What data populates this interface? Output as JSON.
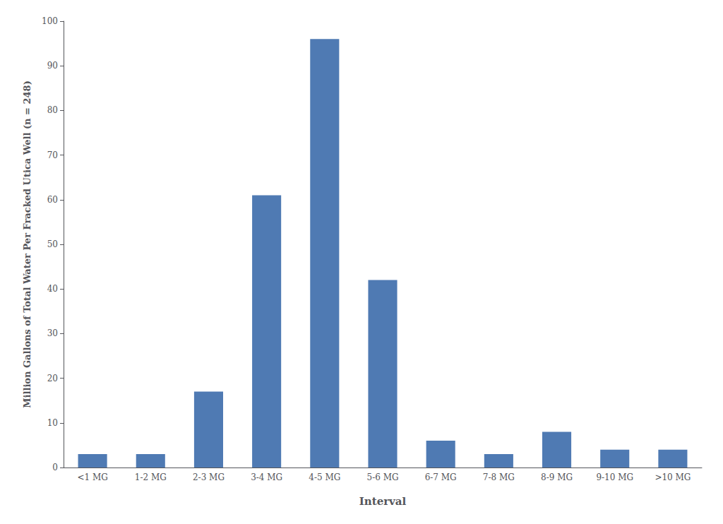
{
  "chart_data": {
    "type": "bar",
    "categories": [
      "<1 MG",
      "1-2 MG",
      "2-3 MG",
      "3-4 MG",
      "4-5 MG",
      "5-6 MG",
      "6-7 MG",
      "7-8 MG",
      "8-9 MG",
      "9-10 MG",
      ">10 MG"
    ],
    "values": [
      3,
      3,
      17,
      61,
      96,
      42,
      6,
      3,
      8,
      4,
      4
    ],
    "color": "#4f7ab3",
    "xlabel": "Interval",
    "ylabel": "Million Gallons of Total Water Per Fracked Utica Well (n = 248)",
    "ylim": [
      0,
      100
    ],
    "yticks": [
      0,
      10,
      20,
      30,
      40,
      50,
      60,
      70,
      80,
      90,
      100
    ],
    "grid": false
  }
}
